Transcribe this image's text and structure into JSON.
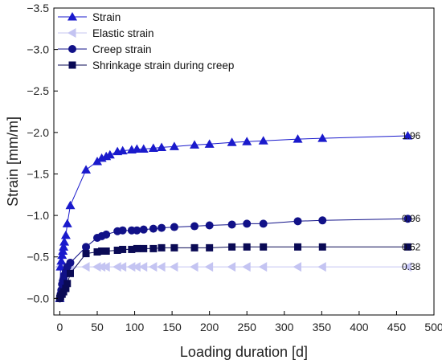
{
  "chart_data": {
    "type": "line",
    "xlabel": "Loading duration [d]",
    "ylabel": "Strain [mm/m]",
    "xlim": [
      -8,
      500
    ],
    "ylim": [
      0.2,
      -3.5
    ],
    "x_ticks": [
      "0",
      "50",
      "100",
      "150",
      "200",
      "250",
      "300",
      "350",
      "400",
      "450",
      "500"
    ],
    "y_ticks": [
      "-3.5",
      "-3.0",
      "-2.5",
      "-2.0",
      "-1.5",
      "-1.0",
      "-0.5",
      "-0.0"
    ],
    "legend_position": "top-left",
    "series": [
      {
        "name": "Strain",
        "marker": "triangle-up",
        "color": "#1a1acc",
        "end_label": "1.96",
        "points": [
          [
            0,
            -0.0
          ],
          [
            1,
            -0.38
          ],
          [
            2,
            -0.45
          ],
          [
            3,
            -0.52
          ],
          [
            4,
            -0.57
          ],
          [
            5,
            -0.62
          ],
          [
            6,
            -0.68
          ],
          [
            8,
            -0.76
          ],
          [
            10,
            -0.9
          ],
          [
            14,
            -1.12
          ],
          [
            35,
            -1.55
          ],
          [
            50,
            -1.65
          ],
          [
            56,
            -1.69
          ],
          [
            62,
            -1.71
          ],
          [
            67,
            -1.73
          ],
          [
            77,
            -1.77
          ],
          [
            84,
            -1.78
          ],
          [
            96,
            -1.79
          ],
          [
            103,
            -1.8
          ],
          [
            112,
            -1.8
          ],
          [
            125,
            -1.81
          ],
          [
            136,
            -1.82
          ],
          [
            153,
            -1.83
          ],
          [
            180,
            -1.85
          ],
          [
            200,
            -1.86
          ],
          [
            230,
            -1.88
          ],
          [
            250,
            -1.89
          ],
          [
            272,
            -1.9
          ],
          [
            318,
            -1.92
          ],
          [
            351,
            -1.93
          ],
          [
            465,
            -1.96
          ]
        ]
      },
      {
        "name": "Elastic strain",
        "marker": "triangle-left",
        "color": "#c4c4f2",
        "end_label": "0.38",
        "points": [
          [
            0,
            -0.38
          ],
          [
            3,
            -0.38
          ],
          [
            6,
            -0.38
          ],
          [
            10,
            -0.38
          ],
          [
            14,
            -0.38
          ],
          [
            35,
            -0.38
          ],
          [
            50,
            -0.38
          ],
          [
            56,
            -0.38
          ],
          [
            62,
            -0.38
          ],
          [
            77,
            -0.38
          ],
          [
            84,
            -0.38
          ],
          [
            96,
            -0.38
          ],
          [
            103,
            -0.38
          ],
          [
            112,
            -0.38
          ],
          [
            125,
            -0.38
          ],
          [
            136,
            -0.38
          ],
          [
            153,
            -0.38
          ],
          [
            180,
            -0.38
          ],
          [
            200,
            -0.38
          ],
          [
            230,
            -0.38
          ],
          [
            250,
            -0.38
          ],
          [
            272,
            -0.38
          ],
          [
            318,
            -0.38
          ],
          [
            351,
            -0.38
          ],
          [
            465,
            -0.38
          ]
        ]
      },
      {
        "name": "Creep strain",
        "marker": "circle",
        "color": "#111188",
        "end_label": "0.96",
        "points": [
          [
            0,
            -0.0
          ],
          [
            1,
            -0.05
          ],
          [
            2,
            -0.1
          ],
          [
            3,
            -0.17
          ],
          [
            4,
            -0.21
          ],
          [
            5,
            -0.24
          ],
          [
            6,
            -0.28
          ],
          [
            8,
            -0.32
          ],
          [
            10,
            -0.38
          ],
          [
            14,
            -0.43
          ],
          [
            35,
            -0.62
          ],
          [
            50,
            -0.73
          ],
          [
            56,
            -0.75
          ],
          [
            62,
            -0.77
          ],
          [
            77,
            -0.81
          ],
          [
            84,
            -0.82
          ],
          [
            96,
            -0.82
          ],
          [
            103,
            -0.82
          ],
          [
            112,
            -0.83
          ],
          [
            125,
            -0.84
          ],
          [
            136,
            -0.85
          ],
          [
            153,
            -0.86
          ],
          [
            180,
            -0.87
          ],
          [
            200,
            -0.88
          ],
          [
            230,
            -0.89
          ],
          [
            250,
            -0.9
          ],
          [
            272,
            -0.9
          ],
          [
            318,
            -0.93
          ],
          [
            351,
            -0.94
          ],
          [
            465,
            -0.96
          ]
        ]
      },
      {
        "name": "Shrinkage strain during creep",
        "marker": "square",
        "color": "#0a0a55",
        "end_label": "0.62",
        "points": [
          [
            0,
            -0.0
          ],
          [
            1,
            -0.02
          ],
          [
            3,
            -0.05
          ],
          [
            5,
            -0.08
          ],
          [
            8,
            -0.12
          ],
          [
            10,
            -0.18
          ],
          [
            14,
            -0.3
          ],
          [
            35,
            -0.54
          ],
          [
            50,
            -0.56
          ],
          [
            56,
            -0.57
          ],
          [
            62,
            -0.57
          ],
          [
            77,
            -0.58
          ],
          [
            84,
            -0.59
          ],
          [
            96,
            -0.59
          ],
          [
            103,
            -0.6
          ],
          [
            112,
            -0.6
          ],
          [
            125,
            -0.6
          ],
          [
            136,
            -0.61
          ],
          [
            153,
            -0.61
          ],
          [
            180,
            -0.61
          ],
          [
            200,
            -0.61
          ],
          [
            230,
            -0.62
          ],
          [
            250,
            -0.62
          ],
          [
            272,
            -0.62
          ],
          [
            318,
            -0.62
          ],
          [
            351,
            -0.62
          ],
          [
            465,
            -0.62
          ]
        ]
      }
    ]
  }
}
